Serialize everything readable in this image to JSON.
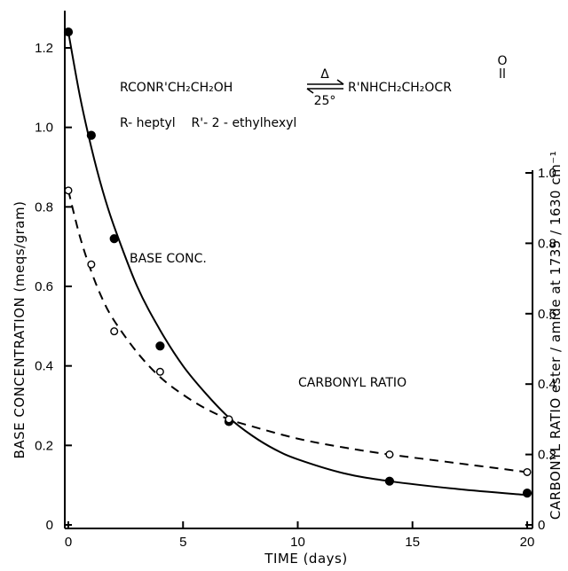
{
  "chart_data": {
    "type": "line",
    "xlabel": "TIME  (days)",
    "ylabel": "BASE CONCENTRATION  (meqs/gram)",
    "y2label": "CARBONYL  RATIO   ester / amide at 1735 / 1630 cm⁻¹",
    "xlim": [
      0,
      20
    ],
    "ylim": [
      0,
      1.25
    ],
    "y2lim": [
      0,
      1.0
    ],
    "x_ticks": [
      "0",
      "5",
      "10",
      "15",
      "20"
    ],
    "y_ticks": [
      "0",
      "0.2",
      "0.4",
      "0.6",
      "0.8",
      "1.0",
      "1.2"
    ],
    "y2_ticks": [
      "0",
      "0.2",
      "0.4",
      "0.6",
      "0.8",
      "1.0"
    ],
    "grid": false,
    "series": [
      {
        "name": "BASE CONC.",
        "axis": "left",
        "marker": "filled-circle",
        "line": "solid",
        "points": [
          [
            0,
            1.24
          ],
          [
            1,
            0.98
          ],
          [
            2,
            0.72
          ],
          [
            4,
            0.45
          ],
          [
            7,
            0.26
          ],
          [
            14,
            0.11
          ],
          [
            20,
            0.08
          ]
        ],
        "curve": [
          [
            0,
            1.24
          ],
          [
            0.5,
            1.08
          ],
          [
            1,
            0.95
          ],
          [
            1.5,
            0.84
          ],
          [
            2,
            0.75
          ],
          [
            3,
            0.6
          ],
          [
            4,
            0.49
          ],
          [
            5,
            0.4
          ],
          [
            6,
            0.33
          ],
          [
            7,
            0.27
          ],
          [
            8,
            0.225
          ],
          [
            9,
            0.19
          ],
          [
            10,
            0.165
          ],
          [
            12,
            0.13
          ],
          [
            14,
            0.11
          ],
          [
            17,
            0.09
          ],
          [
            20,
            0.075
          ]
        ]
      },
      {
        "name": "CARBONYL RATIO",
        "axis": "right",
        "marker": "open-circle",
        "line": "dashed",
        "points": [
          [
            0,
            0.95
          ],
          [
            1,
            0.74
          ],
          [
            2,
            0.55
          ],
          [
            4,
            0.435
          ],
          [
            7,
            0.3
          ],
          [
            14,
            0.2
          ],
          [
            20,
            0.15
          ]
        ],
        "curve": [
          [
            0,
            0.95
          ],
          [
            0.5,
            0.82
          ],
          [
            1,
            0.72
          ],
          [
            1.5,
            0.64
          ],
          [
            2,
            0.58
          ],
          [
            3,
            0.49
          ],
          [
            4,
            0.42
          ],
          [
            5,
            0.37
          ],
          [
            6,
            0.33
          ],
          [
            7,
            0.3
          ],
          [
            8,
            0.28
          ],
          [
            10,
            0.245
          ],
          [
            12,
            0.22
          ],
          [
            14,
            0.2
          ],
          [
            17,
            0.175
          ],
          [
            20,
            0.15
          ]
        ]
      }
    ],
    "annotations": {
      "base_label": "BASE CONC.",
      "carbonyl_label": "CARBONYL  RATIO",
      "reaction_left": "RCONR'CH₂CH₂OH",
      "reaction_over": "Δ",
      "reaction_under": "25°",
      "reaction_right": "R'NHCH₂CH₂OCR",
      "reaction_carbonyl_o": "O",
      "substituents": "R- heptyl    R'- 2 - ethylhexyl"
    }
  }
}
